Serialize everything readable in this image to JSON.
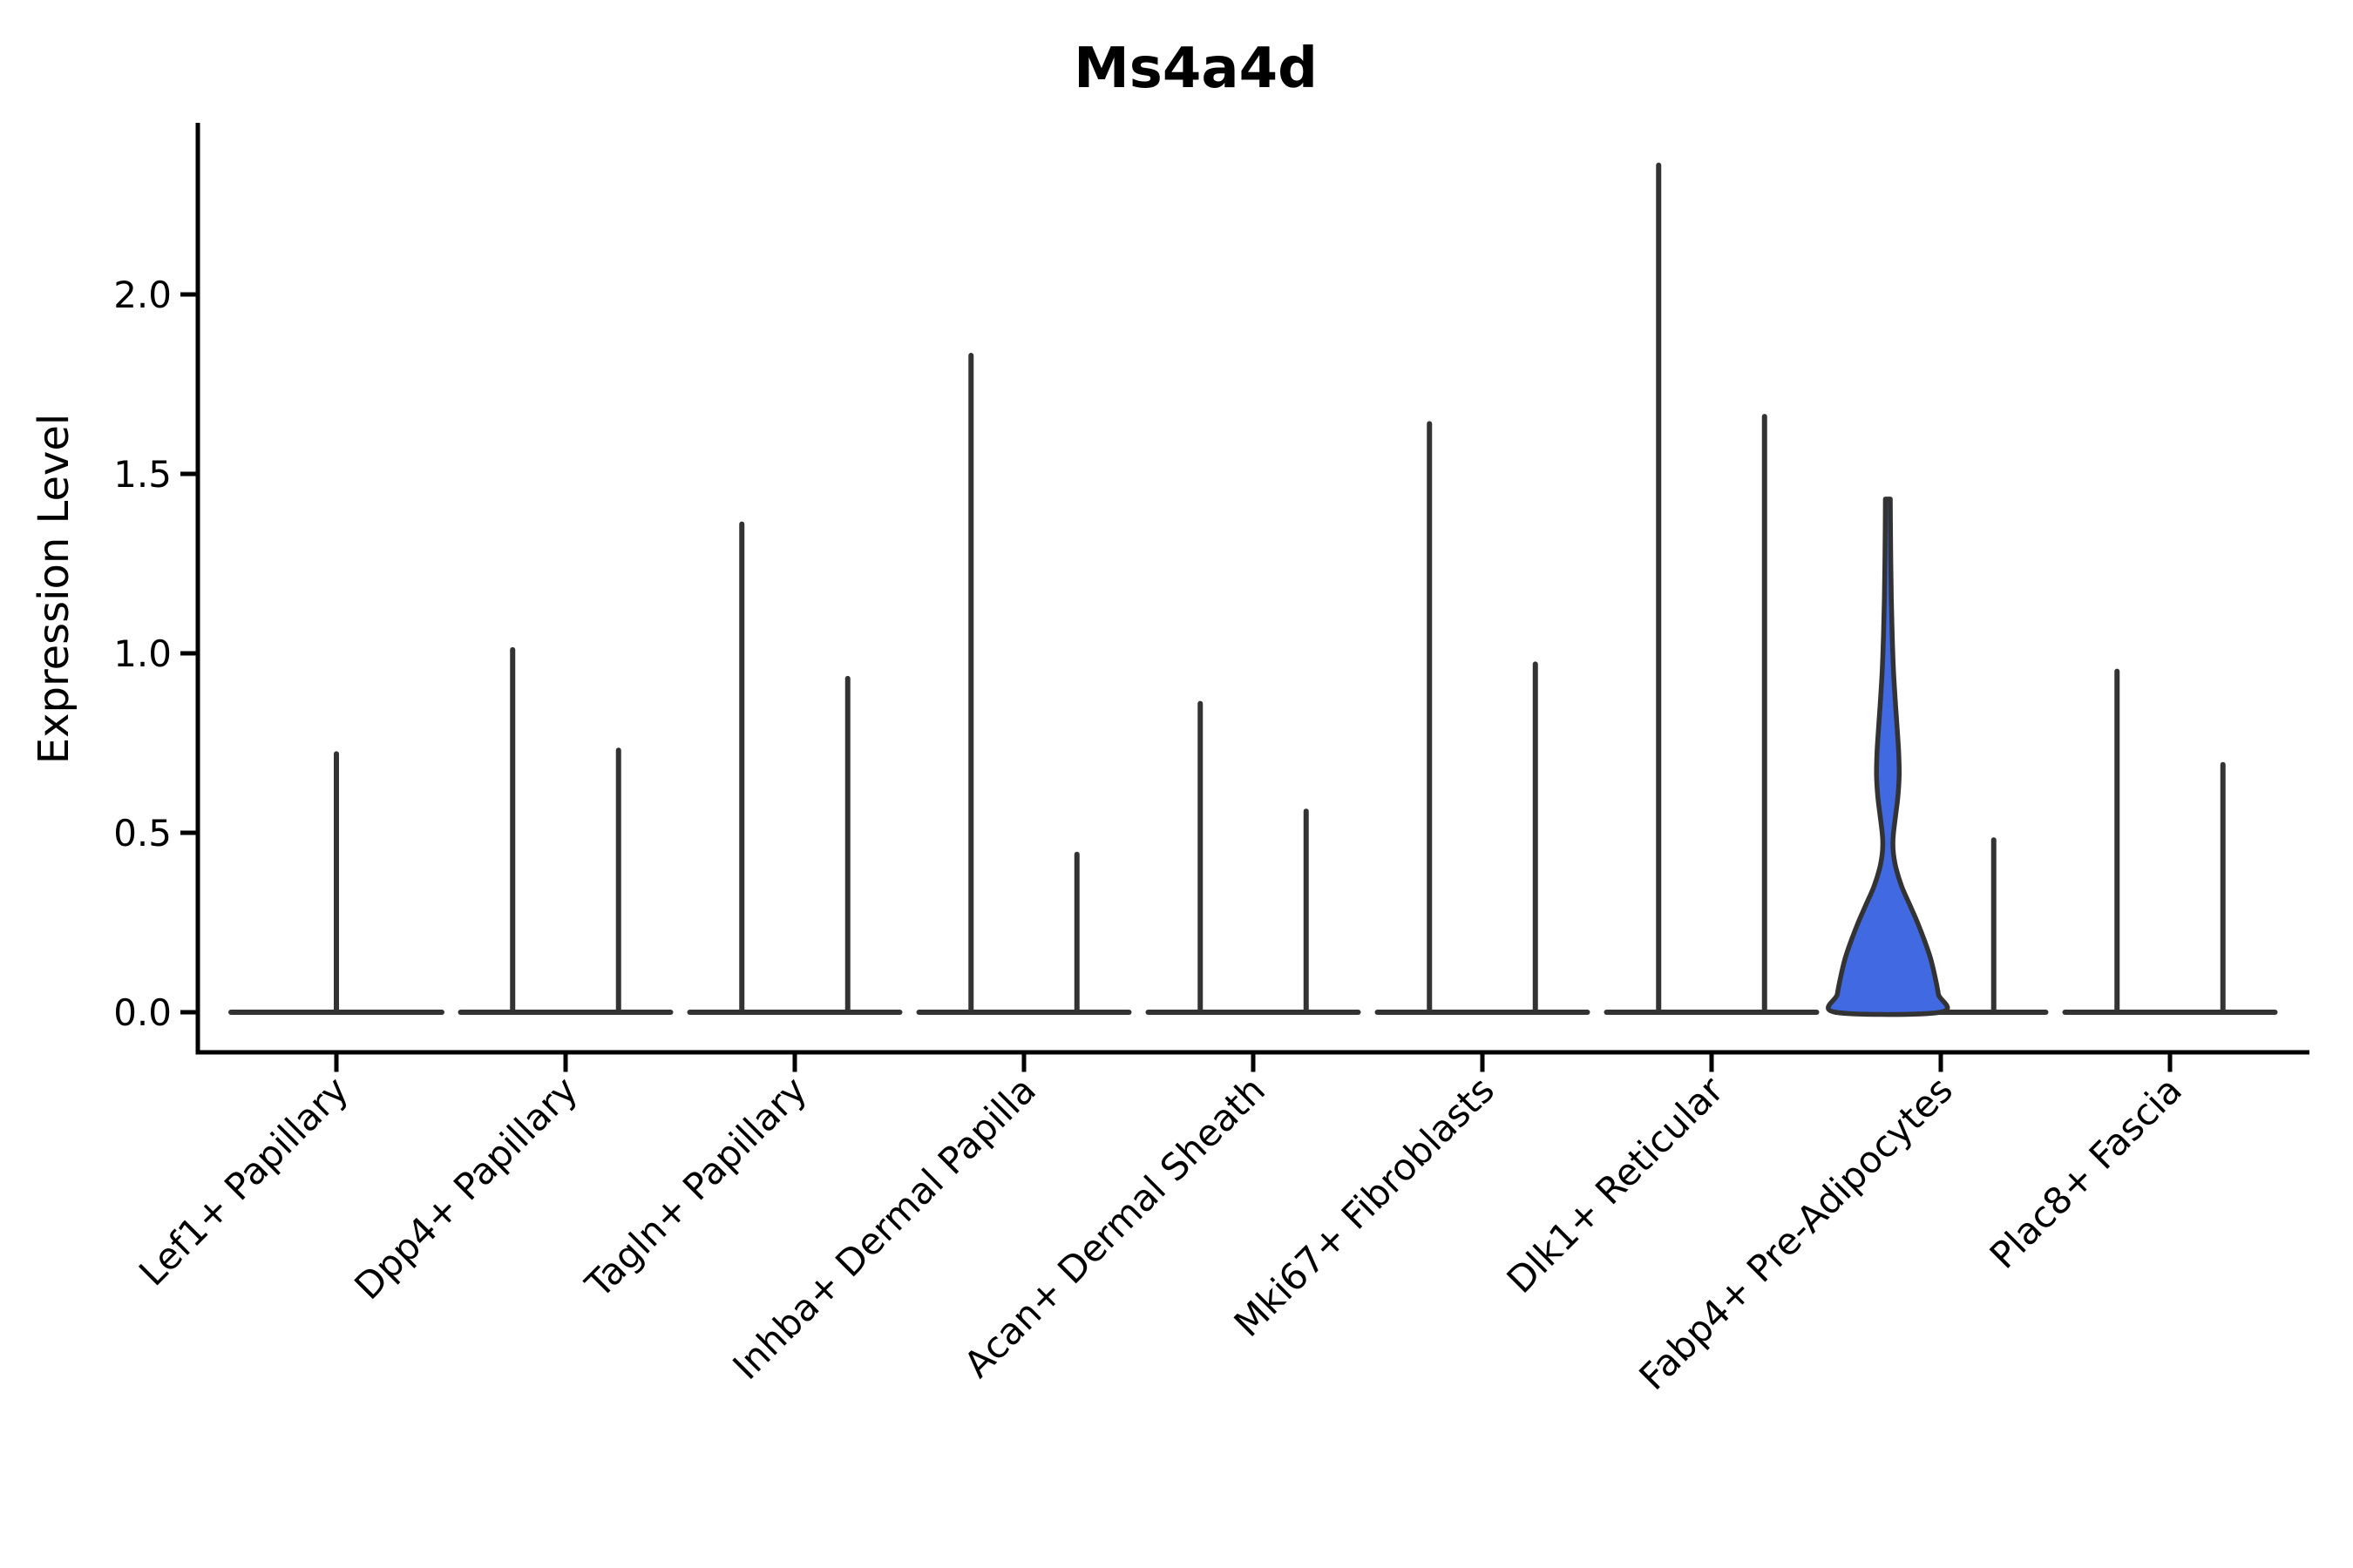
{
  "page": {
    "background": "#ffffff"
  },
  "chart_data": {
    "type": "violin",
    "title": "Ms4a4d",
    "xlabel": "",
    "ylabel": "Expression Level",
    "ylim": [
      -0.11,
      2.48
    ],
    "yticks": [
      0.0,
      0.5,
      1.0,
      1.5,
      2.0
    ],
    "ytick_labels": [
      "0.0",
      "0.5",
      "1.0",
      "1.5",
      "2.0"
    ],
    "grid": false,
    "legend_position": "none",
    "categories": [
      "Lef1+ Papillary",
      "Dpp4+ Papillary",
      "Tagln+ Papillary",
      "Inhba+ Dermal Papilla",
      "Acan+ Dermal Sheath",
      "Mki67+ Fibroblasts",
      "Dlk1+ Reticular",
      "Fabp4+ Pre-Adipocytes",
      "Plac8+ Fascia"
    ],
    "series": [
      {
        "category": "Lef1+ Papillary",
        "violins": [
          {
            "max_expression": 0.72,
            "filled": false
          }
        ]
      },
      {
        "category": "Dpp4+ Papillary",
        "violins": [
          {
            "max_expression": 1.01,
            "filled": false
          },
          {
            "max_expression": 0.73,
            "filled": false
          }
        ]
      },
      {
        "category": "Tagln+ Papillary",
        "violins": [
          {
            "max_expression": 1.36,
            "filled": false
          },
          {
            "max_expression": 0.93,
            "filled": false
          }
        ]
      },
      {
        "category": "Inhba+ Dermal Papilla",
        "violins": [
          {
            "max_expression": 1.83,
            "filled": false
          },
          {
            "max_expression": 0.44,
            "filled": false
          }
        ]
      },
      {
        "category": "Acan+ Dermal Sheath",
        "violins": [
          {
            "max_expression": 0.86,
            "filled": false
          },
          {
            "max_expression": 0.56,
            "filled": false
          }
        ]
      },
      {
        "category": "Mki67+ Fibroblasts",
        "violins": [
          {
            "max_expression": 1.64,
            "filled": false
          },
          {
            "max_expression": 0.97,
            "filled": false
          }
        ]
      },
      {
        "category": "Dlk1+ Reticular",
        "violins": [
          {
            "max_expression": 2.36,
            "filled": false
          },
          {
            "max_expression": 1.66,
            "filled": false
          }
        ]
      },
      {
        "category": "Fabp4+ Pre-Adipocytes",
        "violins": [
          {
            "max_expression": 1.43,
            "filled": true
          },
          {
            "max_expression": 0.48,
            "filled": false
          }
        ]
      },
      {
        "category": "Plac8+ Fascia",
        "violins": [
          {
            "max_expression": 0.95,
            "filled": false
          },
          {
            "max_expression": 0.69,
            "filled": false
          }
        ]
      }
    ],
    "highlight": {
      "category": "Fabp4+ Pre-Adipocytes",
      "violin_index": 0,
      "max_expression": 1.43,
      "fill_color": "#4169E1",
      "density_profile": [
        [
          1.43,
          2.8
        ],
        [
          1.35,
          3.0
        ],
        [
          1.25,
          3.4
        ],
        [
          1.15,
          4.0
        ],
        [
          1.05,
          5.0
        ],
        [
          0.95,
          6.5
        ],
        [
          0.85,
          9.0
        ],
        [
          0.78,
          11.0
        ],
        [
          0.72,
          12.5
        ],
        [
          0.66,
          13.0
        ],
        [
          0.6,
          11.5
        ],
        [
          0.55,
          9.0
        ],
        [
          0.5,
          6.5
        ],
        [
          0.47,
          5.8
        ],
        [
          0.44,
          6.5
        ],
        [
          0.4,
          9.5
        ],
        [
          0.35,
          16.0
        ],
        [
          0.3,
          25.0
        ],
        [
          0.25,
          34.0
        ],
        [
          0.2,
          42.0
        ],
        [
          0.15,
          49.0
        ],
        [
          0.1,
          54.0
        ],
        [
          0.05,
          58.0
        ],
        [
          0.0,
          60.0
        ]
      ]
    },
    "colors": {
      "violin_stroke": "#333333",
      "axis": "#000000",
      "tick_label": "#000000",
      "highlight_fill": "#4169E1",
      "background": "#ffffff"
    }
  }
}
